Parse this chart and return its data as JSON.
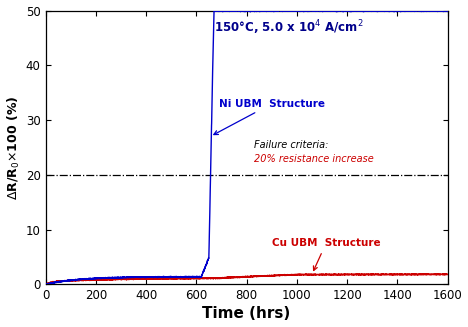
{
  "xlabel": "Time (hrs)",
  "ylabel": "$\\Delta$R/R$_0$$\\times$100 (%)",
  "xlim": [
    0,
    1600
  ],
  "ylim": [
    0,
    50
  ],
  "xticks": [
    0,
    200,
    400,
    600,
    800,
    1000,
    1200,
    1400,
    1600
  ],
  "yticks": [
    0,
    10,
    20,
    30,
    40,
    50
  ],
  "failure_line_y": 20,
  "failure_label_line1": "Failure criteria:",
  "failure_label_line2": "20% resistance increase",
  "ni_label": "Ni UBM  Structure",
  "cu_label": "Cu UBM  Structure",
  "ni_color": "#0000cc",
  "cu_color": "#cc0000",
  "title_color": "#00008B",
  "title_text": "150°C, 5.0 x 10$^4$ A/cm$^2$",
  "ni_rise_start": 620,
  "ni_rise_mid": 650,
  "ni_rise_end": 670
}
